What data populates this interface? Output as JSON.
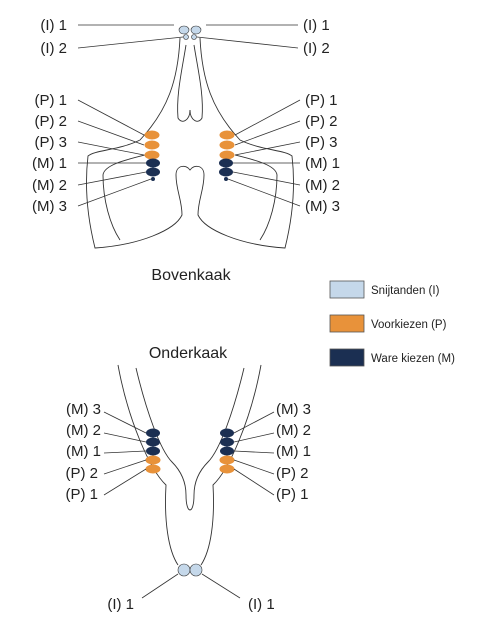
{
  "upper_title": "Bovenkaak",
  "lower_title": "Onderkaak",
  "upper_labels": {
    "left": [
      "(I) 1",
      "(I) 2",
      "(P) 1",
      "(P) 2",
      "(P) 3",
      "(M) 1",
      "(M) 2",
      "(M) 3"
    ],
    "right": [
      "(I) 1",
      "(I) 2",
      "(P) 1",
      "(P) 2",
      "(P) 3",
      "(M) 1",
      "(M) 2",
      "(M) 3"
    ]
  },
  "lower_labels": {
    "left": [
      "(M) 3",
      "(M) 2",
      "(M) 1",
      "(P) 2",
      "(P) 1",
      "(I) 1"
    ],
    "right": [
      "(M) 3",
      "(M) 2",
      "(M) 1",
      "(P) 2",
      "(P) 1",
      "(I) 1"
    ]
  },
  "legend": [
    {
      "label": "Snijtanden (I)",
      "color": "#c5d8ea"
    },
    {
      "label": "Voorkiezen (P)",
      "color": "#e8923a"
    },
    {
      "label": "Ware kiezen (M)",
      "color": "#1b2f52"
    }
  ]
}
